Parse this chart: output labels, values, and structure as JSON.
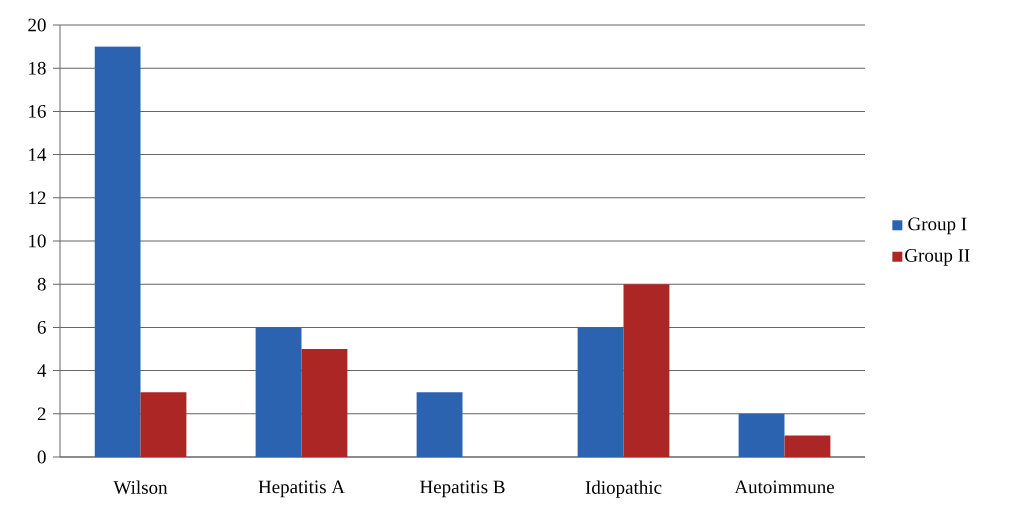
{
  "chart_data": {
    "type": "bar",
    "categories": [
      "Wilson",
      "Hepatitis A",
      "Hepatitis B",
      "Idiopathic",
      "Autoimmune"
    ],
    "series": [
      {
        "name": "Group I",
        "color": "#2b63b0",
        "values": [
          19,
          6,
          3,
          6,
          2
        ]
      },
      {
        "name": "Group II",
        "color": "#ad2626",
        "values": [
          3,
          5,
          0,
          8,
          1
        ]
      }
    ],
    "ylim": [
      0,
      20
    ],
    "yticks": [
      0,
      2,
      4,
      6,
      8,
      10,
      12,
      14,
      16,
      18,
      20
    ],
    "grid": "y",
    "legend": "right"
  }
}
